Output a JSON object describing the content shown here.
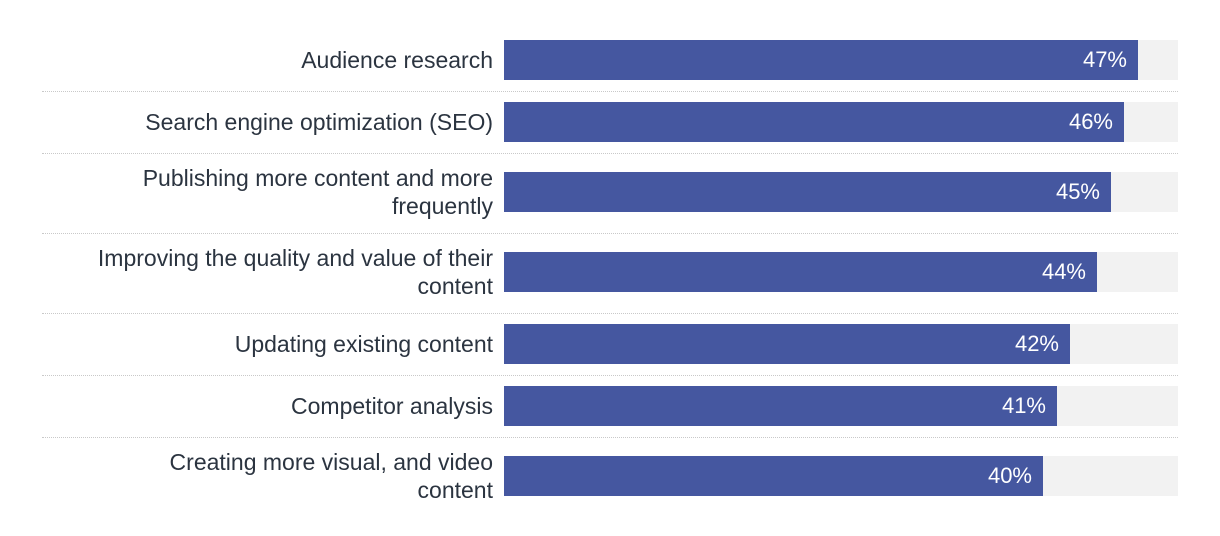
{
  "colors": {
    "bar": "#4557a0",
    "track": "#f2f2f2",
    "label_text": "#2b3440",
    "value_text": "#ffffff"
  },
  "chart_data": {
    "type": "bar",
    "orientation": "horizontal",
    "categories": [
      "Audience research",
      "Search engine optimization (SEO)",
      "Publishing more content and more frequently",
      "Improving the quality and value of their content",
      "Updating existing content",
      "Competitor analysis",
      "Creating more visual, and video content"
    ],
    "category_lines": [
      [
        "Audience research"
      ],
      [
        "Search engine optimization (SEO)"
      ],
      [
        "Publishing more content and more",
        "frequently"
      ],
      [
        "Improving the quality and value of their",
        "content"
      ],
      [
        "Updating existing content"
      ],
      [
        "Competitor analysis"
      ],
      [
        "Creating more visual, and video",
        "content"
      ]
    ],
    "values": [
      47,
      46,
      45,
      44,
      42,
      41,
      40
    ],
    "value_labels": [
      "47%",
      "46%",
      "45%",
      "44%",
      "42%",
      "41%",
      "40%"
    ],
    "xlim": [
      0,
      50
    ],
    "title": "",
    "xlabel": "",
    "ylabel": "",
    "grid": false
  }
}
